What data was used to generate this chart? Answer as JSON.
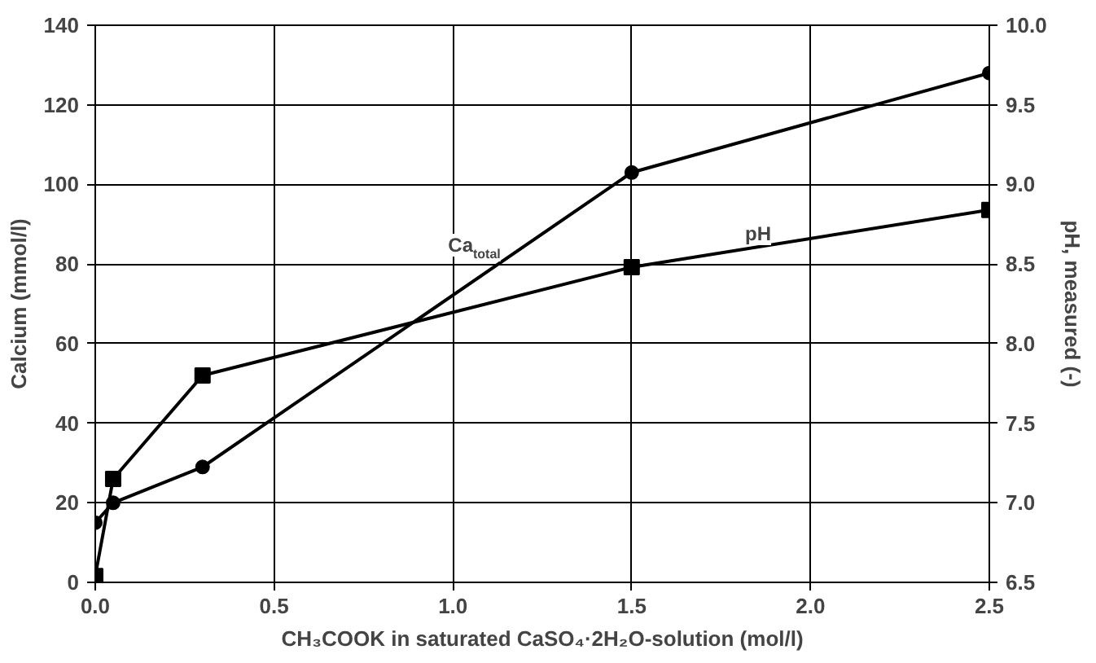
{
  "chart_data": {
    "type": "line",
    "xlabel": "CH₃COOK in saturated CaSO₄·2H₂O-solution (mol/l)",
    "ylabel": "Calcium (mmol/l)",
    "y2label": "pH, measured (-)",
    "x": [
      0,
      0.05,
      0.3,
      1.5,
      2.5
    ],
    "series": [
      {
        "color": "#000000",
        "marker": "circle",
        "values": [
          15,
          20,
          29,
          103,
          128
        ]
      },
      {
        "color": "#000000",
        "marker": "square",
        "axis": "y2",
        "values": [
          6.54,
          7.15,
          7.8,
          8.48,
          8.84
        ]
      }
    ],
    "xlim": [
      0,
      2.5
    ],
    "xticks": [
      {
        "value": 0,
        "label": "0.0"
      },
      0.5,
      {
        "value": 1,
        "label": "1.0"
      },
      1.5,
      {
        "value": 2,
        "label": "2.0"
      },
      2.5
    ],
    "ylim": [
      0,
      140
    ],
    "yticks": [
      0,
      20,
      40,
      60,
      80,
      100,
      120,
      140
    ],
    "y2lim": [
      6.5,
      10
    ],
    "y2ticks": [
      6.5,
      {
        "value": 7,
        "label": "7.0"
      },
      7.5,
      {
        "value": 8,
        "label": "8.0"
      },
      8.5,
      {
        "value": 9,
        "label": "9.0"
      },
      9.5,
      {
        "value": 10,
        "label": "10.0"
      }
    ],
    "annotations": [
      "Ca$_{total}$",
      "pH"
    ],
    "grid": true,
    "line_style": "solid"
  }
}
